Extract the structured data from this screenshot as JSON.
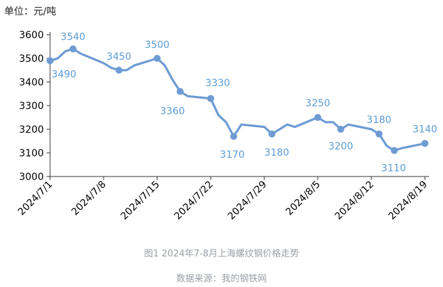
{
  "unit_label": "单位：元/吨",
  "caption": "图1   2024年7-8月上海螺纹钢价格走势",
  "source": "数据来源：我的钢铁网",
  "colors": {
    "line": "#6e9bd3",
    "label": "#5b9bd5",
    "axis": "#333333",
    "tick_text": "#000000"
  },
  "chart_data": {
    "type": "line",
    "title": "",
    "xlabel": "",
    "ylabel": "",
    "ylim": [
      3000,
      3600
    ],
    "yticks": [
      3000,
      3100,
      3200,
      3300,
      3400,
      3500,
      3600
    ],
    "xticks": [
      "2024/7/1",
      "2024/7/8",
      "2024/7/15",
      "2024/7/22",
      "2024/7/29",
      "2024/8/5",
      "2024/8/12",
      "2024/8/19"
    ],
    "grid": false,
    "legend": "none",
    "series": [
      {
        "x": [
          "2024/7/1",
          "2024/7/2",
          "2024/7/3",
          "2024/7/4",
          "2024/7/5",
          "2024/7/8",
          "2024/7/9",
          "2024/7/10",
          "2024/7/11",
          "2024/7/12",
          "2024/7/15",
          "2024/7/16",
          "2024/7/17",
          "2024/7/18",
          "2024/7/19",
          "2024/7/22",
          "2024/7/23",
          "2024/7/24",
          "2024/7/25",
          "2024/7/26",
          "2024/7/29",
          "2024/7/30",
          "2024/7/31",
          "2024/8/1",
          "2024/8/2",
          "2024/8/5",
          "2024/8/6",
          "2024/8/7",
          "2024/8/8",
          "2024/8/9",
          "2024/8/12",
          "2024/8/13",
          "2024/8/14",
          "2024/8/15",
          "2024/8/16",
          "2024/8/19"
        ],
        "values": [
          3490,
          3500,
          3530,
          3540,
          3520,
          3480,
          3460,
          3450,
          3450,
          3470,
          3500,
          3470,
          3410,
          3360,
          3340,
          3330,
          3260,
          3230,
          3170,
          3220,
          3210,
          3180,
          3200,
          3220,
          3210,
          3250,
          3230,
          3230,
          3200,
          3220,
          3200,
          3180,
          3130,
          3110,
          3120,
          3140
        ]
      }
    ],
    "labeled_points": [
      {
        "x": "2024/7/1",
        "value": 3490,
        "label": "3490"
      },
      {
        "x": "2024/7/4",
        "value": 3540,
        "label": "3540"
      },
      {
        "x": "2024/7/10",
        "value": 3450,
        "label": "3450"
      },
      {
        "x": "2024/7/15",
        "value": 3500,
        "label": "3500"
      },
      {
        "x": "2024/7/18",
        "value": 3360,
        "label": "3360"
      },
      {
        "x": "2024/7/22",
        "value": 3330,
        "label": "3330"
      },
      {
        "x": "2024/7/25",
        "value": 3170,
        "label": "3170"
      },
      {
        "x": "2024/7/30",
        "value": 3180,
        "label": "3180"
      },
      {
        "x": "2024/8/5",
        "value": 3250,
        "label": "3250"
      },
      {
        "x": "2024/8/8",
        "value": 3200,
        "label": "3200"
      },
      {
        "x": "2024/8/13",
        "value": 3180,
        "label": "3180"
      },
      {
        "x": "2024/8/15",
        "value": 3110,
        "label": "3110"
      },
      {
        "x": "2024/8/19",
        "value": 3140,
        "label": "3140"
      }
    ]
  }
}
